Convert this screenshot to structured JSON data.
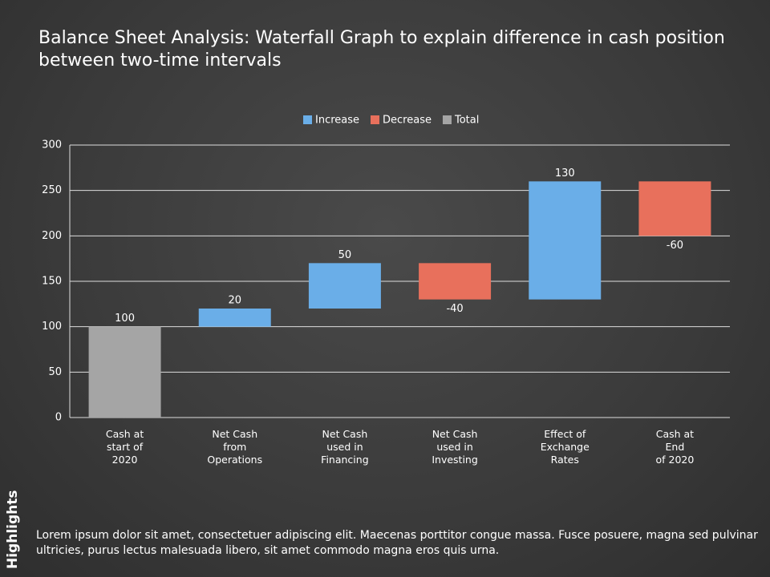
{
  "header": {
    "title": "Balance Sheet Analysis: Waterfall Graph to explain difference in cash position between two-time intervals"
  },
  "chart_data": {
    "type": "waterfall",
    "categories": [
      "Cash at\nstart of\n2020",
      "Net Cash\nfrom\nOperations",
      "Net Cash\nused in\nFinancing",
      "Net Cash\nused in\nInvesting",
      "Effect of\nExchange\nRates",
      "Cash at\nEnd\nof 2020"
    ],
    "values": [
      100,
      20,
      50,
      -40,
      130,
      -60
    ],
    "totals": [
      0
    ],
    "legend": [
      {
        "name": "Increase",
        "color": "#6aaee8"
      },
      {
        "name": "Decrease",
        "color": "#e8705c"
      },
      {
        "name": "Total",
        "color": "#a5a5a5"
      }
    ],
    "ylim": [
      0,
      300
    ],
    "yticks": [
      0,
      50,
      100,
      150,
      200,
      250,
      300
    ],
    "grid": true
  },
  "footer": {
    "label": "Highlights",
    "text": "Lorem ipsum dolor sit amet, consectetuer adipiscing elit. Maecenas porttitor congue massa. Fusce posuere, magna sed pulvinar ultricies, purus lectus malesuada libero, sit amet commodo magna eros quis urna."
  }
}
